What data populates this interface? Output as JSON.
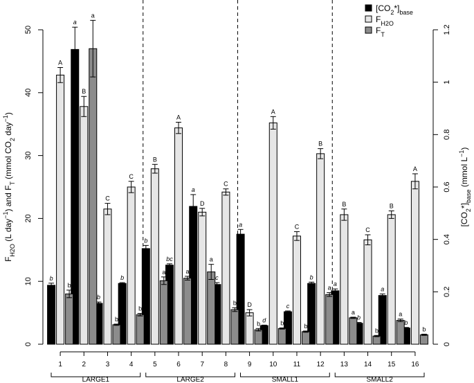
{
  "chart_data": {
    "type": "bar",
    "categories": [
      "1",
      "2",
      "3",
      "4",
      "5",
      "6",
      "7",
      "8",
      "9",
      "10",
      "11",
      "12",
      "13",
      "14",
      "15",
      "16"
    ],
    "groups": [
      {
        "label": "LARGE1",
        "categories": [
          "1",
          "2",
          "3",
          "4"
        ]
      },
      {
        "label": "LARGE2",
        "categories": [
          "5",
          "6",
          "7",
          "8"
        ]
      },
      {
        "label": "SMALL1",
        "categories": [
          "9",
          "10",
          "11",
          "12"
        ]
      },
      {
        "label": "SMALL2",
        "categories": [
          "13",
          "14",
          "15",
          "16"
        ]
      }
    ],
    "left_axis": {
      "label_parts": [
        {
          "t": "F"
        },
        {
          "t": "H2O",
          "sub": true
        },
        {
          "t": " (L day"
        },
        {
          "t": "−1",
          "sup": true
        },
        {
          "t": ") and F"
        },
        {
          "t": "T",
          "sub": true
        },
        {
          "t": " (mmol CO"
        },
        {
          "t": "2",
          "sub": true
        },
        {
          "t": " day"
        },
        {
          "t": "−1",
          "sup": true
        },
        {
          "t": ")"
        }
      ],
      "range": [
        0,
        50
      ],
      "ticks": [
        "0",
        "10",
        "20",
        "30",
        "40",
        "50"
      ]
    },
    "right_axis": {
      "label_parts": [
        {
          "t": "[CO"
        },
        {
          "t": "2",
          "sub": true
        },
        {
          "t": "*]"
        },
        {
          "t": "base",
          "sub": true
        },
        {
          "t": " (mmol L"
        },
        {
          "t": "−1",
          "sup": true
        },
        {
          "t": ")"
        }
      ],
      "range": [
        0,
        1.2
      ],
      "ticks": [
        "0",
        "0.2",
        "0.4",
        "0.6",
        "0.8",
        "1",
        "1.2"
      ]
    },
    "series": [
      {
        "name_parts": [
          {
            "t": "[CO"
          },
          {
            "t": "2",
            "sub": true
          },
          {
            "t": "*]"
          },
          {
            "t": "base",
            "sub": true
          }
        ],
        "axis": "right",
        "color": "#000000",
        "values": [
          0.225,
          1.125,
          0.156,
          0.232,
          0.365,
          0.302,
          0.526,
          0.228,
          0.42,
          0.071,
          0.124,
          0.232,
          0.204,
          0.08,
          0.186,
          0.062
        ],
        "errors": [
          0.008,
          0.085,
          0.005,
          0.003,
          0.012,
          0.005,
          0.045,
          0.007,
          0.018,
          0.002,
          0.003,
          0.005,
          0.007,
          0.003,
          0.006,
          0.002
        ],
        "letters": [
          "b",
          "a",
          "b",
          "b",
          "b",
          "bc",
          "a",
          "c",
          "a",
          "d",
          "c",
          "b",
          "a",
          "b",
          "a",
          "b"
        ]
      },
      {
        "name_parts": [
          {
            "t": "F"
          },
          {
            "t": "H2O",
            "sub": true
          }
        ],
        "axis": "left",
        "color": "#e6e6e6",
        "values": [
          42.8,
          37.8,
          21.5,
          25.0,
          27.9,
          34.4,
          21.0,
          24.2,
          5.0,
          35.2,
          17.2,
          30.3,
          20.6,
          16.6,
          20.6,
          25.9
        ],
        "errors": [
          1.2,
          1.6,
          0.9,
          0.9,
          0.7,
          0.9,
          0.6,
          0.5,
          0.5,
          1.0,
          0.7,
          0.8,
          0.9,
          0.8,
          0.6,
          1.2
        ],
        "letters": [
          "A",
          "B",
          "C",
          "C",
          "B",
          "A",
          "D",
          "C",
          "D",
          "A",
          "C",
          "B",
          "B",
          "C",
          "B",
          "A"
        ]
      },
      {
        "name_parts": [
          {
            "t": "F"
          },
          {
            "t": "T",
            "sub": true
          }
        ],
        "axis": "left",
        "color": "#8c8c8c",
        "values": [
          8.0,
          47.0,
          3.1,
          4.7,
          10.1,
          10.5,
          11.5,
          5.5,
          2.3,
          2.5,
          2.0,
          7.9,
          4.2,
          1.3,
          3.8,
          1.5
        ],
        "errors": [
          0.6,
          4.5,
          0.1,
          0.2,
          0.6,
          0.3,
          1.2,
          0.3,
          0.2,
          0.1,
          0.1,
          0.3,
          0.1,
          0.1,
          0.2,
          0.1
        ],
        "letters": [
          "b",
          "a",
          "b",
          "b",
          "a",
          "a",
          "a",
          "b",
          "b",
          "b",
          "b",
          "a",
          "a",
          "b",
          "a",
          "b"
        ]
      }
    ],
    "legend_position": "top-right",
    "grid": false
  }
}
